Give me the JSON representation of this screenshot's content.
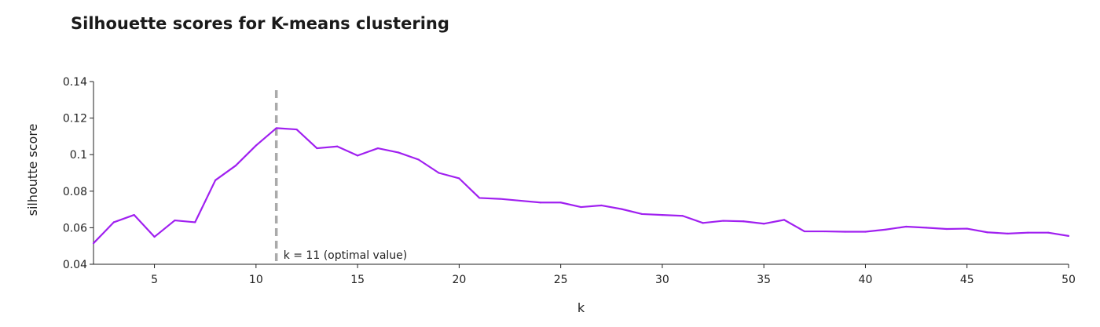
{
  "chart_data": {
    "type": "line",
    "title": "Silhouette scores for K-means clustering",
    "xlabel": "k",
    "ylabel": "silhoutte score",
    "xlim": [
      2,
      50
    ],
    "ylim": [
      0.04,
      0.14
    ],
    "x_ticks": [
      5,
      10,
      15,
      20,
      25,
      30,
      35,
      40,
      45,
      50
    ],
    "y_ticks": [
      0.04,
      0.06,
      0.08,
      0.1,
      0.12,
      0.14
    ],
    "y_tick_labels": [
      "0.04",
      "0.06",
      "0.08",
      "0.1",
      "0.12",
      "0.14"
    ],
    "line_color": "#a020f0",
    "optimal_line_color": "#aaaaaa",
    "grid": false,
    "series": [
      {
        "x": [
          2,
          3,
          4,
          5,
          6,
          7,
          8,
          9,
          10,
          11,
          12,
          13,
          14,
          15,
          16,
          17,
          18,
          19,
          20,
          21,
          22,
          23,
          24,
          25,
          26,
          27,
          28,
          29,
          30,
          31,
          32,
          33,
          34,
          35,
          36,
          37,
          38,
          39,
          40,
          41,
          42,
          43,
          44,
          45,
          46,
          47,
          48,
          49,
          50
        ],
        "values": [
          0.0515,
          0.063,
          0.067,
          0.055,
          0.064,
          0.063,
          0.086,
          0.094,
          0.105,
          0.1145,
          0.1138,
          0.1035,
          0.1045,
          0.0995,
          0.1035,
          0.1012,
          0.0973,
          0.09,
          0.087,
          0.0763,
          0.0758,
          0.0748,
          0.0738,
          0.0738,
          0.0713,
          0.0722,
          0.0702,
          0.0675,
          0.067,
          0.0665,
          0.0626,
          0.0638,
          0.0635,
          0.0622,
          0.0643,
          0.058,
          0.058,
          0.0578,
          0.0578,
          0.059,
          0.0606,
          0.06,
          0.0593,
          0.0595,
          0.0575,
          0.0568,
          0.0573,
          0.0573,
          0.0555
        ]
      }
    ],
    "annotation": {
      "x": 11,
      "text": "k = 11 (optimal value)"
    }
  }
}
